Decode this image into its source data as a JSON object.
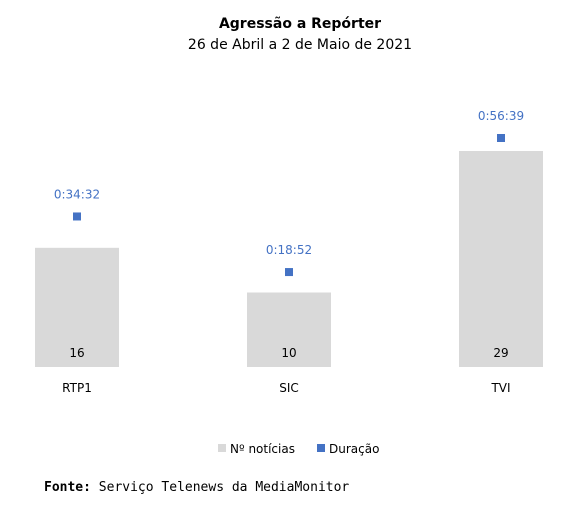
{
  "chart_data": {
    "type": "bar",
    "title": "Agressão a Repórter",
    "subtitle": "26 de Abril a 2 de Maio de 2021",
    "categories": [
      "RTP1",
      "SIC",
      "TVI"
    ],
    "series": [
      {
        "name": "Nº notícias",
        "type": "bar",
        "values": [
          16,
          10,
          29
        ],
        "color": "#d9d9d9"
      },
      {
        "name": "Duração",
        "type": "scatter",
        "values": [
          "0:34:32",
          "0:18:52",
          "0:56:39"
        ],
        "seconds": [
          2072,
          1132,
          3399
        ],
        "color": "#4472c4"
      }
    ],
    "legend": "bottom",
    "grid": false
  },
  "source": {
    "label": "Fonte:",
    "text": "Serviço Telenews da MediaMonitor"
  }
}
